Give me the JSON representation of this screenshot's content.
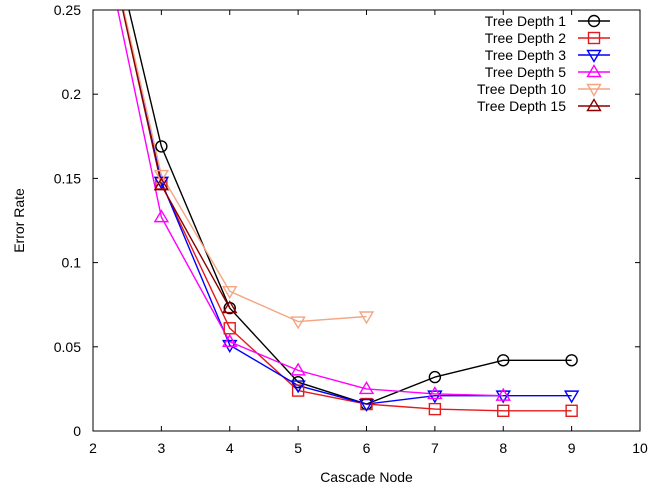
{
  "chart_data": {
    "type": "line",
    "title": "",
    "xlabel": "Cascade Node",
    "ylabel": "Error Rate",
    "xlim": [
      2,
      10
    ],
    "ylim": [
      0,
      0.25
    ],
    "xticks": [
      2,
      3,
      4,
      5,
      6,
      7,
      8,
      9,
      10
    ],
    "yticks": [
      0,
      0.05,
      0.1,
      0.15,
      0.2,
      0.25
    ],
    "xtick_labels": [
      "2",
      "3",
      "4",
      "5",
      "6",
      "7",
      "8",
      "9",
      "10"
    ],
    "ytick_labels": [
      "0",
      "0.05",
      "0.1",
      "0.15",
      "0.2",
      "0.25"
    ],
    "grid": false,
    "legend_position": "top-right",
    "series": [
      {
        "name": "Tree Depth 1",
        "color": "#000000",
        "marker": "circle",
        "x": [
          2,
          3,
          4,
          5,
          6,
          7,
          8,
          9
        ],
        "y": [
          0.34,
          0.169,
          0.073,
          0.029,
          0.016,
          0.032,
          0.042,
          0.042
        ],
        "marker_x": [
          3,
          4,
          5,
          6,
          7,
          8,
          9
        ],
        "marker_y": [
          0.169,
          0.073,
          0.029,
          0.016,
          0.032,
          0.042,
          0.042
        ]
      },
      {
        "name": "Tree Depth 2",
        "color": "#e41a1c",
        "marker": "square",
        "x": [
          2,
          3,
          4,
          5,
          6,
          7,
          8,
          9
        ],
        "y": [
          0.33,
          0.147,
          0.061,
          0.024,
          0.016,
          0.013,
          0.012,
          0.012
        ],
        "marker_x": [
          3,
          4,
          5,
          6,
          7,
          8,
          9
        ],
        "marker_y": [
          0.147,
          0.061,
          0.024,
          0.016,
          0.013,
          0.012,
          0.012
        ]
      },
      {
        "name": "Tree Depth 3",
        "color": "#0000ff",
        "marker": "triangle-down",
        "x": [
          2,
          3,
          4,
          5,
          6,
          7,
          8,
          9
        ],
        "y": [
          0.33,
          0.148,
          0.051,
          0.027,
          0.016,
          0.021,
          0.021,
          0.021
        ],
        "marker_x": [
          3,
          4,
          5,
          6,
          7,
          8,
          9
        ],
        "marker_y": [
          0.148,
          0.051,
          0.027,
          0.016,
          0.021,
          0.021,
          0.021
        ]
      },
      {
        "name": "Tree Depth 5",
        "color": "#ff00ff",
        "marker": "triangle-up",
        "x": [
          2,
          3,
          4,
          5,
          6,
          7,
          8
        ],
        "y": [
          0.32,
          0.127,
          0.053,
          0.036,
          0.025,
          0.022,
          0.021
        ],
        "marker_x": [
          3,
          4,
          5,
          6,
          7,
          8
        ],
        "marker_y": [
          0.127,
          0.053,
          0.036,
          0.025,
          0.022,
          0.021
        ]
      },
      {
        "name": "Tree Depth 10",
        "color": "#f4a582",
        "marker": "triangle-down",
        "x": [
          2,
          3,
          4,
          5,
          6
        ],
        "y": [
          0.33,
          0.152,
          0.083,
          0.065,
          0.068
        ],
        "marker_x": [
          3,
          4,
          5,
          6
        ],
        "marker_y": [
          0.152,
          0.083,
          0.065,
          0.068
        ]
      },
      {
        "name": "Tree Depth 15",
        "color": "#8b0000",
        "marker": "triangle-up",
        "x": [
          2,
          3,
          4
        ],
        "y": [
          0.33,
          0.146,
          0.073
        ],
        "marker_x": [
          3,
          4
        ],
        "marker_y": [
          0.146,
          0.073
        ]
      }
    ]
  }
}
